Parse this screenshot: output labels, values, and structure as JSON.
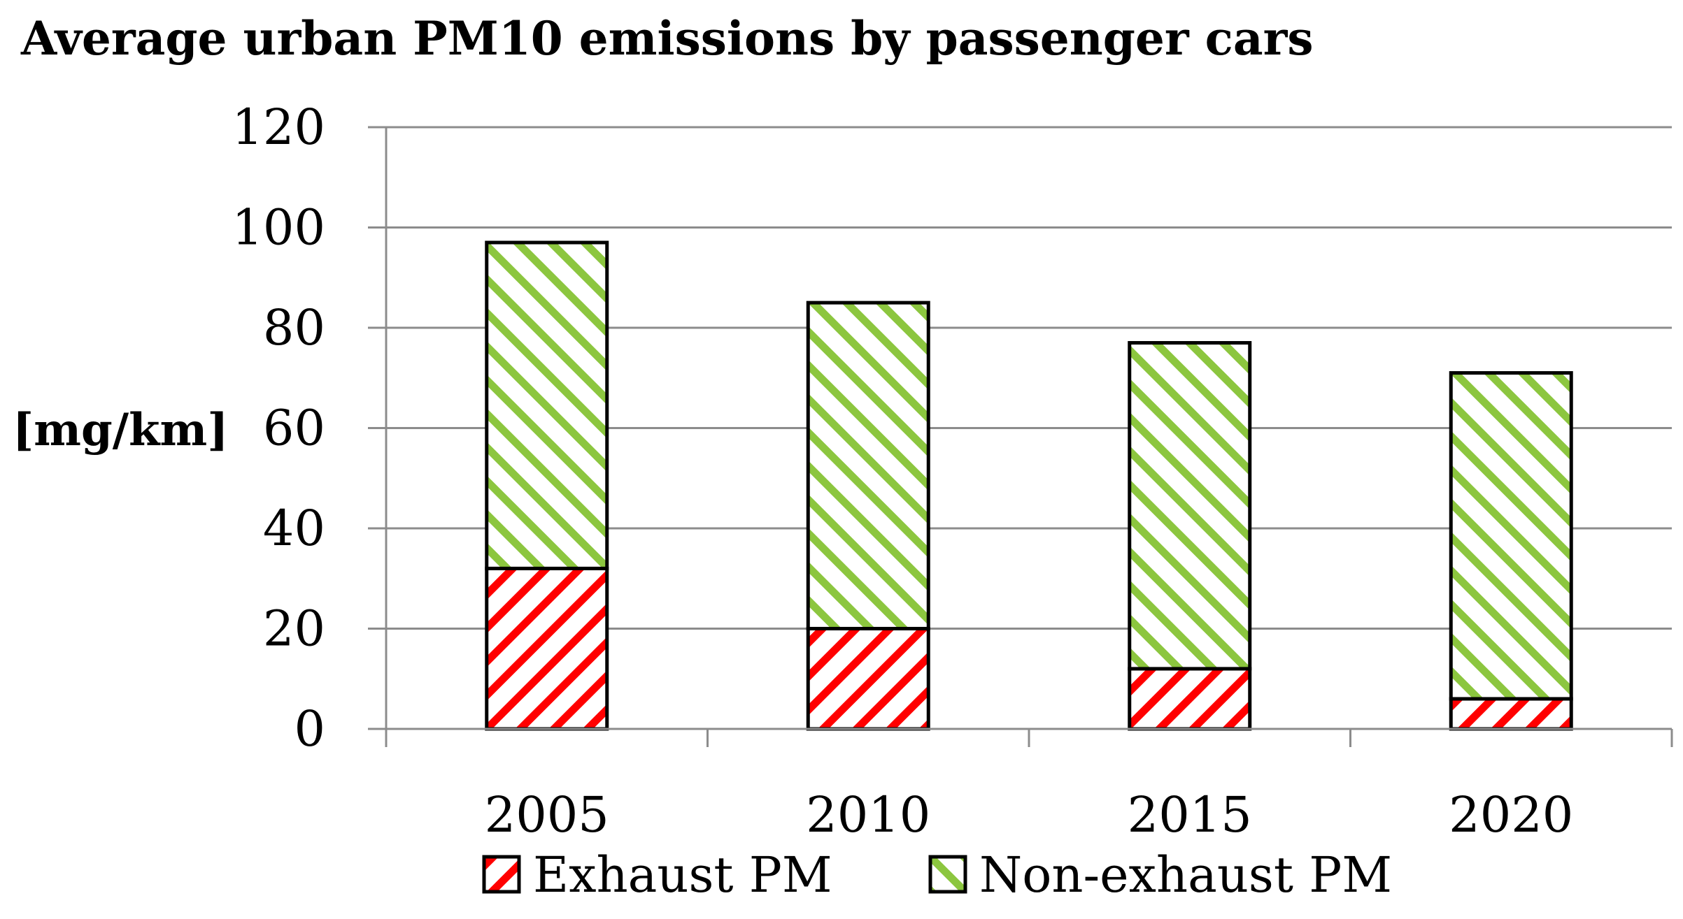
{
  "chart_data": {
    "type": "bar",
    "stacked": true,
    "title": "Average urban PM10 emissions by passenger cars",
    "xlabel": "",
    "ylabel": "[mg/km]",
    "categories": [
      "2005",
      "2010",
      "2015",
      "2020"
    ],
    "series": [
      {
        "name": "Exhaust PM",
        "values": [
          32,
          20,
          12,
          6
        ],
        "color": "#ff0000",
        "pattern": "diagonal-hatch"
      },
      {
        "name": "Non-exhaust PM",
        "values": [
          65,
          65,
          65,
          65
        ],
        "color": "#8cc63f",
        "pattern": "diagonal-hatch"
      }
    ],
    "totals": [
      97,
      85,
      77,
      71
    ],
    "ylim": [
      0,
      120
    ],
    "yticks": [
      0,
      20,
      40,
      60,
      80,
      100,
      120
    ],
    "grid": true,
    "legend": "bottom"
  }
}
